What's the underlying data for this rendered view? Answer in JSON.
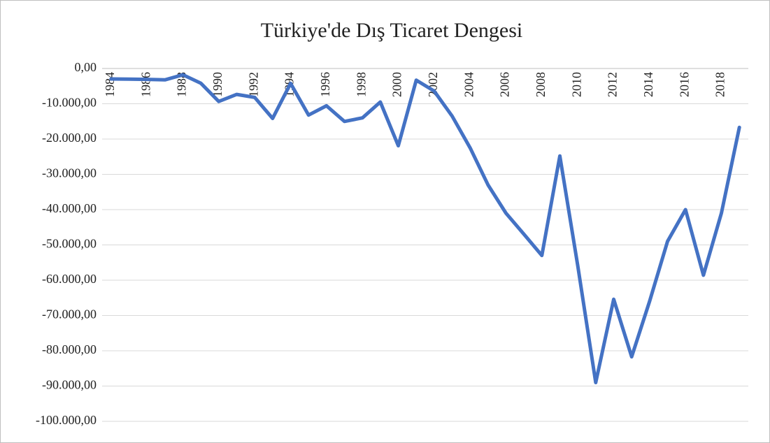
{
  "chart_data": {
    "type": "line",
    "title": "Türkiye'de Dış Ticaret Dengesi",
    "categories": [
      "1984",
      null,
      "1986",
      null,
      "1988",
      null,
      "1990",
      null,
      "1992",
      null,
      "1994",
      null,
      "1996",
      null,
      "1998",
      null,
      "2000",
      null,
      "2002",
      null,
      "2004",
      null,
      "2006",
      null,
      "2008",
      null,
      "2010",
      null,
      "2012",
      null,
      "2014",
      null,
      "2016",
      null,
      "2018",
      null
    ],
    "series": [
      {
        "name": "Dış Ticaret Dengesi",
        "color": "#4472c4",
        "values": [
          -2970,
          -3000,
          -3080,
          -3230,
          -1780,
          -4170,
          -9340,
          -7340,
          -8190,
          -14160,
          -4220,
          -13210,
          -10580,
          -15000,
          -14000,
          -9500,
          -21900,
          -3300,
          -6400,
          -13500,
          -22500,
          -33000,
          -41000,
          -47000,
          -53000,
          -24800,
          -56000,
          -89000,
          -65400,
          -81700,
          -66000,
          -49000,
          -40000,
          -58600,
          -41000,
          -16700
        ]
      }
    ],
    "ylim": [
      -100000,
      0
    ],
    "yticks": [
      {
        "value": 0,
        "label": "0,00"
      },
      {
        "value": -10000,
        "label": "-10.000,00"
      },
      {
        "value": -20000,
        "label": "-20.000,00"
      },
      {
        "value": -30000,
        "label": "-30.000,00"
      },
      {
        "value": -40000,
        "label": "-40.000,00"
      },
      {
        "value": -50000,
        "label": "-50.000,00"
      },
      {
        "value": -60000,
        "label": "-60.000,00"
      },
      {
        "value": -70000,
        "label": "-70.000,00"
      },
      {
        "value": -80000,
        "label": "-80.000,00"
      },
      {
        "value": -90000,
        "label": "-90.000,00"
      },
      {
        "value": -100000,
        "label": "-100.000,00"
      }
    ],
    "grid": true
  }
}
